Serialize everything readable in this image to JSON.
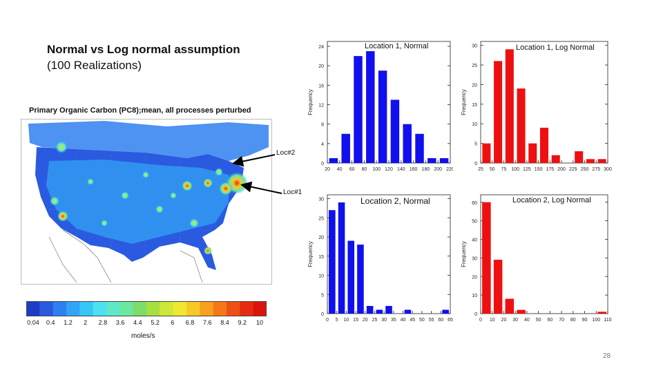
{
  "slide": {
    "title_line1": "Normal vs Log normal assumption",
    "title_line2": "(100 Realizations)",
    "page_number": "28"
  },
  "map": {
    "title": "Primary Organic Carbon (PC8);mean, all processes perturbed",
    "colorbar_labels": [
      "0.04",
      "0.4",
      "1.2",
      "2",
      "2.8",
      "3.6",
      "4.4",
      "5.2",
      "6",
      "6.8",
      "7.6",
      "8.4",
      "9.2",
      "10"
    ],
    "colorbar_unit": "moles/s",
    "colorbar_colors": [
      "#1e3cc8",
      "#2a5ae0",
      "#2f7ff0",
      "#33a3f5",
      "#36c6f8",
      "#4ee0f0",
      "#5ee8c8",
      "#6be8a0",
      "#7ddc6a",
      "#a6e040",
      "#cde838",
      "#f0e830",
      "#f8c828",
      "#f8a020",
      "#f47818",
      "#ee5014",
      "#e62c10",
      "#dc140c"
    ],
    "locations": [
      {
        "label": "Loc#2"
      },
      {
        "label": "Loc#1"
      }
    ]
  },
  "chart_data": [
    {
      "type": "bar",
      "title": "Location 1, Normal",
      "color": "#1010ee",
      "xlabel": "",
      "ylabel": "Frequency",
      "x": [
        30,
        50,
        70,
        90,
        110,
        130,
        150,
        170,
        190,
        210
      ],
      "values": [
        1,
        6,
        22,
        23,
        19,
        13,
        8,
        6,
        1,
        1
      ],
      "xlim": [
        20,
        220
      ],
      "ylim": [
        0,
        25
      ],
      "bar_width": 14,
      "xticks": [
        20,
        40,
        60,
        80,
        100,
        120,
        140,
        160,
        180,
        200,
        220
      ],
      "yticks": [
        0,
        4,
        8,
        12,
        16,
        20,
        24
      ]
    },
    {
      "type": "bar",
      "title": "Location 1, Log Normal",
      "color": "#ee1010",
      "xlabel": "",
      "ylabel": "Frequency",
      "x": [
        37.5,
        62.5,
        87.5,
        112.5,
        137.5,
        162.5,
        187.5,
        237.5,
        262.5,
        287.5
      ],
      "values": [
        5,
        26,
        29,
        19,
        5,
        9,
        2,
        3,
        1,
        1
      ],
      "xlim": [
        25,
        300
      ],
      "ylim": [
        0,
        31
      ],
      "bar_width": 18,
      "xticks": [
        25,
        50,
        75,
        100,
        125,
        150,
        175,
        200,
        225,
        250,
        275,
        300
      ],
      "yticks": [
        0,
        5,
        10,
        15,
        20,
        25,
        30
      ]
    },
    {
      "type": "bar",
      "title": "Location 2, Normal",
      "color": "#1010ee",
      "xlabel": "",
      "ylabel": "Frequency",
      "x": [
        2.5,
        7.5,
        12.5,
        17.5,
        22.5,
        27.5,
        32.5,
        42.5,
        62.5
      ],
      "values": [
        27,
        29,
        19,
        18,
        2,
        1,
        2,
        1,
        1
      ],
      "xlim": [
        0,
        65
      ],
      "ylim": [
        0,
        31
      ],
      "bar_width": 3.5,
      "xticks": [
        0,
        5,
        10,
        15,
        20,
        25,
        30,
        35,
        40,
        45,
        50,
        55,
        60,
        65
      ],
      "yticks": [
        0,
        5,
        10,
        15,
        20,
        25,
        30
      ]
    },
    {
      "type": "bar",
      "title": "Location 2, Log Normal",
      "color": "#ee1010",
      "xlabel": "",
      "ylabel": "Frequency",
      "x": [
        5,
        15,
        25,
        35,
        105
      ],
      "values": [
        60,
        29,
        8,
        2,
        1
      ],
      "xlim": [
        0,
        110
      ],
      "ylim": [
        0,
        64
      ],
      "bar_width": 7.5,
      "xticks": [
        0,
        10,
        20,
        30,
        40,
        50,
        60,
        70,
        80,
        90,
        100,
        110
      ],
      "yticks": [
        0,
        10,
        20,
        30,
        40,
        50,
        60
      ]
    }
  ]
}
